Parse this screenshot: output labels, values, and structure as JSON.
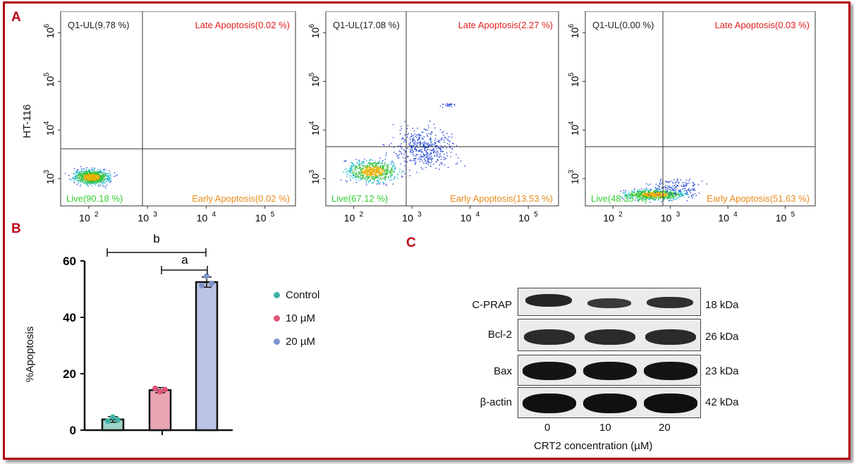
{
  "panels": {
    "a": "A",
    "b": "B",
    "c": "C"
  },
  "cell_line": "HT-116",
  "flow_plots": [
    {
      "q1": "Q1-UL(9.78 %)",
      "late": "Late Apoptosis(0.02 %)",
      "live": "Live(90.18 %)",
      "early": "Early Apoptosis(0.02 %)",
      "x_ticks": [
        "10",
        "10",
        "10",
        "10"
      ],
      "x_exps": [
        "2",
        "3",
        "4",
        "5"
      ],
      "y_ticks": [
        "10",
        "10",
        "10",
        "10"
      ],
      "y_exps": [
        "3",
        "4",
        "5",
        "6"
      ]
    },
    {
      "q1": "Q1-UL(17.08 %)",
      "late": "Late Apoptosis(2.27 %)",
      "live": "Live(67.12 %)",
      "early": "Early Apoptosis(13.53 %)",
      "x_ticks": [
        "10",
        "10",
        "10",
        "10"
      ],
      "x_exps": [
        "2",
        "3",
        "4",
        "5"
      ],
      "y_ticks": [
        "10",
        "10",
        "10",
        "10"
      ],
      "y_exps": [
        "3",
        "4",
        "5",
        "6"
      ]
    },
    {
      "q1": "Q1-UL(0.00 %)",
      "late": "Late Apoptosis(0.03 %)",
      "live": "Live(48.35 %)",
      "early": "Early Apoptosis(51.63 %)",
      "x_ticks": [
        "10",
        "10",
        "10",
        "10"
      ],
      "x_exps": [
        "2",
        "3",
        "4",
        "5"
      ],
      "y_ticks": [
        "10",
        "10",
        "10",
        "10"
      ],
      "y_exps": [
        "3",
        "4",
        "5",
        "6"
      ]
    }
  ],
  "chart_data": {
    "type": "bar",
    "categories": [
      "Control",
      "10 µM",
      "20 µM"
    ],
    "values": [
      3.8,
      14.2,
      52.5
    ],
    "errors": [
      1.0,
      0.9,
      1.8
    ],
    "points": [
      [
        3.2,
        4.6,
        3.6
      ],
      [
        14.8,
        13.6,
        14.4
      ],
      [
        51.3,
        54.6,
        52.0
      ]
    ],
    "colors": [
      "#3fb2a6",
      "#e0547a",
      "#7f93cc"
    ],
    "bar_colors": [
      "#9fd3cb",
      "#e9a6b5",
      "#b9c3e2"
    ],
    "ylabel": "%Apoptosis",
    "ylim": [
      0,
      60
    ],
    "y_ticks": [
      "0",
      "20",
      "40",
      "60"
    ],
    "legend": [
      "Control",
      "10 µM",
      "20 µM"
    ],
    "significance": [
      "b",
      "a"
    ]
  },
  "western_blot": {
    "proteins": [
      "C-PRAP",
      "Bcl-2",
      "Bax",
      "β-actin"
    ],
    "weights": [
      "18 kDa",
      "26 kDa",
      "23 kDa",
      "42 kDa"
    ],
    "lanes": [
      "0",
      "10",
      "20"
    ],
    "xlabel": "CRT2 concentration (µM)"
  }
}
